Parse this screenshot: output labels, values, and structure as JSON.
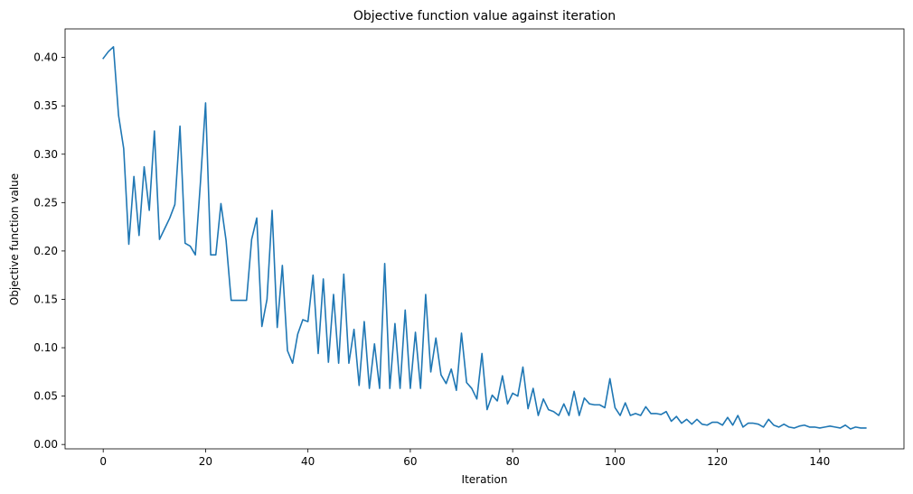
{
  "chart_data": {
    "type": "line",
    "title": "Objective function value against iteration",
    "xlabel": "Iteration",
    "ylabel": "Objective function value",
    "xlim": [
      -7.45,
      156.45
    ],
    "ylim": [
      -0.0045,
      0.4295
    ],
    "xticks": [
      0,
      20,
      40,
      60,
      80,
      100,
      120,
      140
    ],
    "yticks": [
      0.0,
      0.05,
      0.1,
      0.15,
      0.2,
      0.25,
      0.3,
      0.35,
      0.4
    ],
    "grid": false,
    "series": [
      {
        "color": "#1f77b4",
        "x": [
          0,
          1,
          2,
          3,
          4,
          5,
          6,
          7,
          8,
          9,
          10,
          11,
          12,
          13,
          14,
          15,
          16,
          17,
          18,
          19,
          20,
          21,
          22,
          23,
          24,
          25,
          26,
          27,
          28,
          29,
          30,
          31,
          32,
          33,
          34,
          35,
          36,
          37,
          38,
          39,
          40,
          41,
          42,
          43,
          44,
          45,
          46,
          47,
          48,
          49,
          50,
          51,
          52,
          53,
          54,
          55,
          56,
          57,
          58,
          59,
          60,
          61,
          62,
          63,
          64,
          65,
          66,
          67,
          68,
          69,
          70,
          71,
          72,
          73,
          74,
          75,
          76,
          77,
          78,
          79,
          80,
          81,
          82,
          83,
          84,
          85,
          86,
          87,
          88,
          89,
          90,
          91,
          92,
          93,
          94,
          95,
          96,
          97,
          98,
          99,
          100,
          101,
          102,
          103,
          104,
          105,
          106,
          107,
          108,
          109,
          110,
          111,
          112,
          113,
          114,
          115,
          116,
          117,
          118,
          119,
          120,
          121,
          122,
          123,
          124,
          125,
          126,
          127,
          128,
          129,
          130,
          131,
          132,
          133,
          134,
          135,
          136,
          137,
          138,
          139,
          140,
          141,
          142,
          143,
          144,
          145,
          146,
          147,
          148,
          149
        ],
        "y": [
          0.399,
          0.406,
          0.411,
          0.34,
          0.306,
          0.207,
          0.277,
          0.216,
          0.287,
          0.242,
          0.324,
          0.212,
          0.223,
          0.234,
          0.248,
          0.329,
          0.208,
          0.205,
          0.196,
          0.271,
          0.353,
          0.196,
          0.196,
          0.249,
          0.211,
          0.149,
          0.149,
          0.149,
          0.149,
          0.212,
          0.234,
          0.122,
          0.15,
          0.242,
          0.121,
          0.185,
          0.097,
          0.084,
          0.114,
          0.129,
          0.127,
          0.175,
          0.094,
          0.171,
          0.085,
          0.155,
          0.084,
          0.176,
          0.084,
          0.119,
          0.061,
          0.127,
          0.058,
          0.104,
          0.058,
          0.187,
          0.058,
          0.125,
          0.058,
          0.139,
          0.058,
          0.116,
          0.058,
          0.155,
          0.075,
          0.11,
          0.072,
          0.063,
          0.078,
          0.056,
          0.115,
          0.064,
          0.058,
          0.047,
          0.094,
          0.036,
          0.051,
          0.045,
          0.071,
          0.042,
          0.053,
          0.05,
          0.08,
          0.037,
          0.058,
          0.03,
          0.047,
          0.036,
          0.034,
          0.03,
          0.042,
          0.03,
          0.055,
          0.03,
          0.048,
          0.042,
          0.041,
          0.041,
          0.038,
          0.068,
          0.038,
          0.03,
          0.043,
          0.03,
          0.032,
          0.03,
          0.039,
          0.032,
          0.032,
          0.031,
          0.034,
          0.024,
          0.029,
          0.022,
          0.026,
          0.021,
          0.026,
          0.021,
          0.02,
          0.023,
          0.023,
          0.02,
          0.028,
          0.02,
          0.03,
          0.018,
          0.022,
          0.022,
          0.021,
          0.018,
          0.026,
          0.02,
          0.018,
          0.021,
          0.018,
          0.017,
          0.019,
          0.02,
          0.018,
          0.018,
          0.017,
          0.018,
          0.019,
          0.018,
          0.017,
          0.02,
          0.016,
          0.018,
          0.017,
          0.017
        ]
      }
    ]
  }
}
